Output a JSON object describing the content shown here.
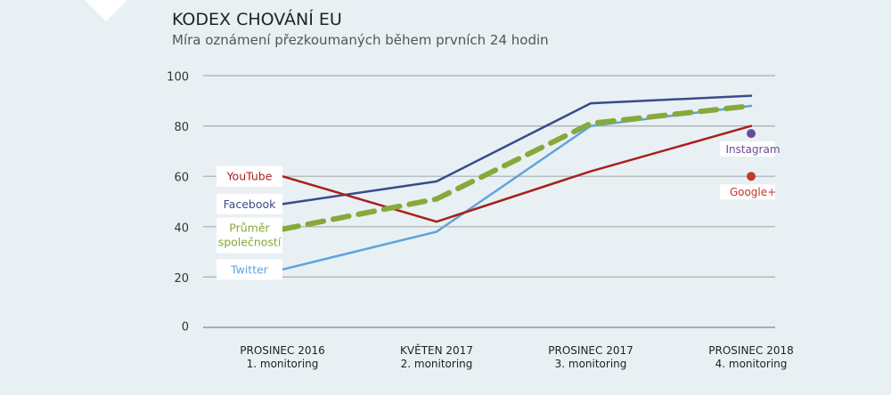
{
  "chart_data": {
    "type": "line",
    "title": "KODEX CHOVÁNÍ EU",
    "subtitle": "Míra oznámení přezkoumaných během prvních 24 hodin",
    "categories": [
      [
        "PROSINEC 2016",
        "1. monitoring"
      ],
      [
        "KVĚTEN 2017",
        "2. monitoring"
      ],
      [
        "PROSINEC 2017",
        "3. monitoring"
      ],
      [
        "PROSINEC 2018",
        "4. monitoring"
      ]
    ],
    "ylim": [
      0,
      100
    ],
    "yticks": [
      0,
      20,
      40,
      60,
      80,
      100
    ],
    "grid": true,
    "series": [
      {
        "name": "YouTube",
        "color": "#a8201a",
        "dashed": false,
        "values": [
          60,
          42,
          62,
          80
        ],
        "label_lines": [
          "YouTube"
        ]
      },
      {
        "name": "Facebook",
        "color": "#3b4a8a",
        "dashed": false,
        "values": [
          49,
          58,
          89,
          92
        ],
        "label_lines": [
          "Facebook"
        ]
      },
      {
        "name": "Twitter",
        "color": "#5fa3dc",
        "dashed": false,
        "values": [
          23,
          38,
          80,
          88
        ],
        "label_lines": [
          "Twitter"
        ]
      },
      {
        "name": "Průměr společností",
        "color": "#86a93a",
        "dashed": true,
        "values": [
          39,
          51,
          81,
          88
        ],
        "label_lines": [
          "Průměr",
          "společností"
        ]
      }
    ],
    "points": [
      {
        "name": "Instagram",
        "color": "#6a4a9a",
        "category": 3,
        "value": 77
      },
      {
        "name": "Google+",
        "color": "#c0392b",
        "category": 3,
        "value": 60
      }
    ]
  }
}
